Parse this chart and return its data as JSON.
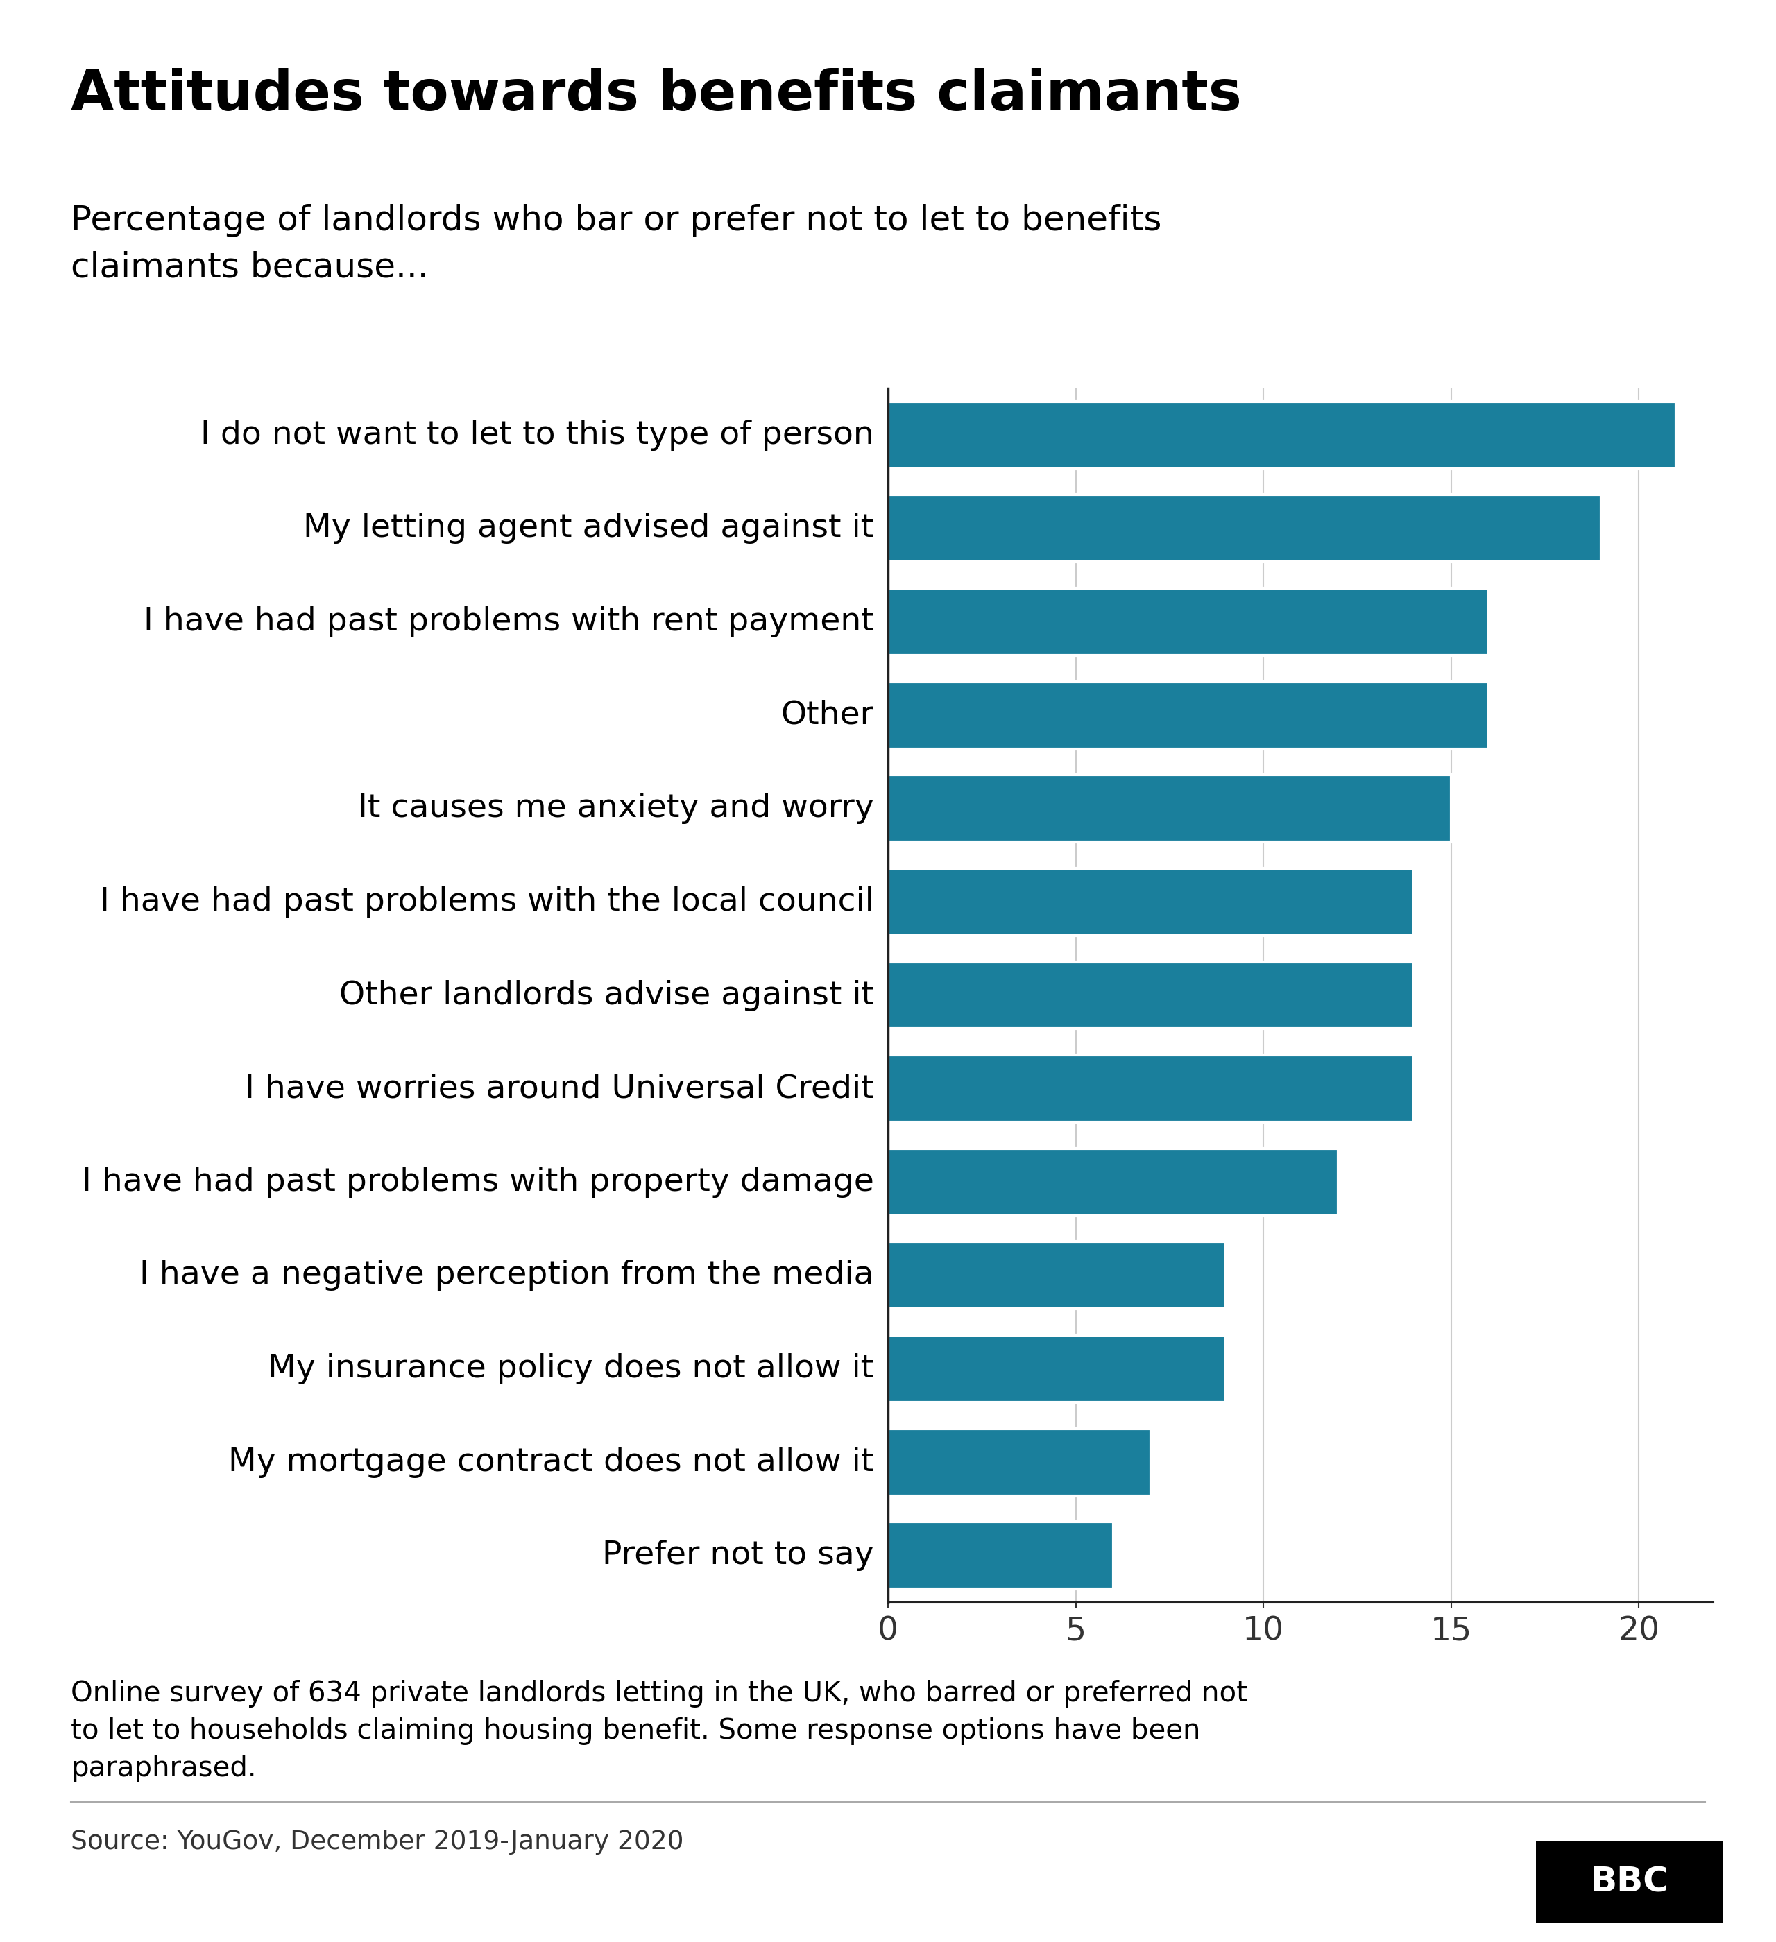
{
  "title": "Attitudes towards benefits claimants",
  "subtitle": "Percentage of landlords who bar or prefer not to let to benefits\nclaimants because...",
  "categories": [
    "I do not want to let to this type of person",
    "My letting agent advised against it",
    "I have had past problems with rent payment",
    "Other",
    "It causes me anxiety and worry",
    "I have had past problems with the local council",
    "Other landlords advise against it",
    "I have worries around Universal Credit",
    "I have had past problems with property damage",
    "I have a negative perception from the media",
    "My insurance policy does not allow it",
    "My mortgage contract does not allow it",
    "Prefer not to say"
  ],
  "values": [
    21,
    19,
    16,
    16,
    15,
    14,
    14,
    14,
    12,
    9,
    9,
    7,
    6
  ],
  "bar_color": "#1a7f9c",
  "background_color": "#ffffff",
  "xlim": [
    0,
    22
  ],
  "xticks": [
    0,
    5,
    10,
    15,
    20
  ],
  "footnote": "Online survey of 634 private landlords letting in the UK, who barred or preferred not\nto let to households claiming housing benefit. Some response options have been\nparaphrased.",
  "source": "Source: YouGov, December 2019-January 2020",
  "title_fontsize": 58,
  "subtitle_fontsize": 36,
  "label_fontsize": 34,
  "tick_fontsize": 34,
  "footnote_fontsize": 29,
  "source_fontsize": 27
}
